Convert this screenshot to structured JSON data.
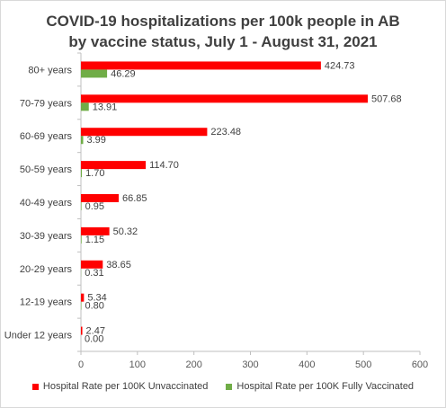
{
  "chart_data": {
    "type": "bar",
    "orientation": "horizontal",
    "title_line1": "COVID-19 hospitalizations per 100k people in AB",
    "title_line2": "by vaccine status, July 1 - August 31, 2021",
    "categories": [
      "80+ years",
      "70-79 years",
      "60-69 years",
      "50-59 years",
      "40-49 years",
      "30-39 years",
      "20-29 years",
      "12-19 years",
      "Under 12 years"
    ],
    "series": [
      {
        "name": "Hospital Rate per 100K Unvaccinated",
        "color": "#ff0000",
        "values": [
          424.73,
          507.68,
          223.48,
          114.7,
          66.85,
          50.32,
          38.65,
          5.34,
          2.47
        ],
        "labels": [
          "424.73",
          "507.68",
          "223.48",
          "114.70",
          "66.85",
          "50.32",
          "38.65",
          "5.34",
          "2.47"
        ]
      },
      {
        "name": "Hospital Rate per 100K Fully Vaccinated",
        "color": "#70ad47",
        "values": [
          46.29,
          13.91,
          3.99,
          1.7,
          0.95,
          1.15,
          0.31,
          0.8,
          0.0
        ],
        "labels": [
          "46.29",
          "13.91",
          "3.99",
          "1.70",
          "0.95",
          "1.15",
          "0.31",
          "0.80",
          "0.00"
        ]
      }
    ],
    "xlim": [
      0,
      600
    ],
    "xticks": [
      "0",
      "100",
      "200",
      "300",
      "400",
      "500",
      "600"
    ],
    "xticks_values": [
      0,
      100,
      200,
      300,
      400,
      500,
      600
    ],
    "legend_position": "bottom",
    "grid": false
  }
}
